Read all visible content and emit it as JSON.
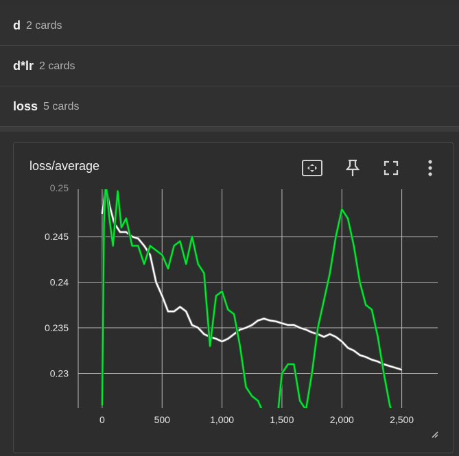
{
  "groups": [
    {
      "title": "d",
      "count": "2 cards"
    },
    {
      "title": "d*lr",
      "count": "2 cards"
    },
    {
      "title": "loss",
      "count": "5 cards"
    }
  ],
  "card": {
    "title": "loss/average",
    "icons": [
      "fit-domain-icon",
      "pin-icon",
      "fullscreen-icon",
      "more-vert-icon"
    ]
  },
  "chart_data": {
    "type": "line",
    "grid": true,
    "xlim": [
      -200,
      2800
    ],
    "ylim": [
      0.2262,
      0.2502
    ],
    "x_ticks": [
      0,
      500,
      1000,
      1500,
      2000,
      2500
    ],
    "x_tick_labels": [
      "0",
      "500",
      "1,000",
      "1,500",
      "2,000",
      "2,500"
    ],
    "y_ticks": [
      0.23,
      0.235,
      0.24,
      0.245
    ],
    "y_tick_labels": [
      "0.23",
      "0.235",
      "0.24",
      "0.245"
    ],
    "top_partial_label": "0.25",
    "series": [
      {
        "color": "#ffffff",
        "x": [
          0,
          30,
          60,
          100,
          150,
          200,
          250,
          300,
          350,
          400,
          450,
          500,
          550,
          600,
          650,
          700,
          750,
          800,
          850,
          900,
          950,
          1000,
          1050,
          1100,
          1150,
          1200,
          1250,
          1300,
          1350,
          1400,
          1450,
          1500,
          1550,
          1600,
          1650,
          1700,
          1750,
          1800,
          1850,
          1900,
          1950,
          2000,
          2050,
          2100,
          2150,
          2200,
          2250,
          2300,
          2350,
          2400,
          2450,
          2500
        ],
        "y": [
          0.2475,
          0.2505,
          0.2485,
          0.2465,
          0.2455,
          0.2455,
          0.245,
          0.2448,
          0.244,
          0.243,
          0.24,
          0.2385,
          0.2368,
          0.2368,
          0.2373,
          0.2368,
          0.2353,
          0.235,
          0.2343,
          0.234,
          0.2338,
          0.2335,
          0.2338,
          0.2343,
          0.2348,
          0.235,
          0.2353,
          0.2358,
          0.236,
          0.2358,
          0.2357,
          0.2355,
          0.2353,
          0.2353,
          0.235,
          0.2348,
          0.2345,
          0.2343,
          0.234,
          0.2343,
          0.234,
          0.2335,
          0.2328,
          0.2325,
          0.232,
          0.2318,
          0.2315,
          0.2313,
          0.231,
          0.2308,
          0.2306,
          0.2304
        ]
      },
      {
        "color": "#00e833",
        "x": [
          0,
          15,
          30,
          60,
          90,
          110,
          130,
          160,
          200,
          250,
          300,
          350,
          400,
          450,
          500,
          550,
          600,
          650,
          700,
          750,
          800,
          850,
          900,
          950,
          1000,
          1050,
          1100,
          1150,
          1200,
          1250,
          1300,
          1350,
          1400,
          1450,
          1500,
          1550,
          1600,
          1650,
          1700,
          1750,
          1800,
          1850,
          1900,
          1950,
          2000,
          2050,
          2100,
          2150,
          2200,
          2250,
          2300,
          2350,
          2400,
          2450,
          2500
        ],
        "y": [
          0.2265,
          0.2465,
          0.251,
          0.247,
          0.244,
          0.247,
          0.25,
          0.246,
          0.247,
          0.244,
          0.244,
          0.242,
          0.244,
          0.2435,
          0.243,
          0.2415,
          0.244,
          0.2445,
          0.242,
          0.245,
          0.242,
          0.241,
          0.233,
          0.2385,
          0.239,
          0.237,
          0.2365,
          0.233,
          0.2285,
          0.2275,
          0.227,
          0.2255,
          0.2235,
          0.2235,
          0.23,
          0.231,
          0.231,
          0.227,
          0.226,
          0.23,
          0.235,
          0.238,
          0.241,
          0.245,
          0.248,
          0.247,
          0.244,
          0.24,
          0.2375,
          0.237,
          0.234,
          0.23,
          0.2265,
          0.2245,
          0.226
        ]
      }
    ]
  }
}
